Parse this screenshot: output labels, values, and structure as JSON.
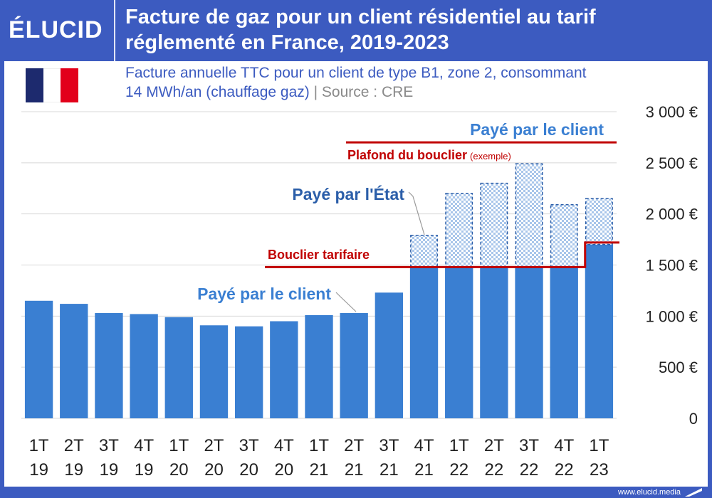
{
  "header": {
    "logo_text": "ÉLUCID",
    "title_line1": "Facture de gaz pour un client résidentiel au tarif",
    "title_line2": "réglementé en France, 2019-2023"
  },
  "subtitle": {
    "line1": "Facture annuelle TTC pour un client de type B1, zone 2, consommant",
    "line2": "14 MWh/an (chauffage gaz)",
    "separator": "|",
    "source": "Source : CRE"
  },
  "footer": {
    "url": "www.elucid.media"
  },
  "colors": {
    "brand": "#3c5bc0",
    "bar": "#3a7fd2",
    "shield_line": "#c00000",
    "flag_blue": "#1d2a6e",
    "flag_red": "#e2001a",
    "grid": "#d8d8d8",
    "annotation_blue": "#3a7fd2"
  },
  "chart_data": {
    "type": "bar",
    "title": "Facture de gaz pour un client résidentiel au tarif réglementé en France, 2019-2023",
    "categories": [
      [
        "1T",
        "19"
      ],
      [
        "2T",
        "19"
      ],
      [
        "3T",
        "19"
      ],
      [
        "4T",
        "19"
      ],
      [
        "1T",
        "20"
      ],
      [
        "2T",
        "20"
      ],
      [
        "3T",
        "20"
      ],
      [
        "4T",
        "20"
      ],
      [
        "1T",
        "21"
      ],
      [
        "2T",
        "21"
      ],
      [
        "3T",
        "21"
      ],
      [
        "4T",
        "21"
      ],
      [
        "1T",
        "22"
      ],
      [
        "2T",
        "22"
      ],
      [
        "3T",
        "22"
      ],
      [
        "4T",
        "22"
      ],
      [
        "1T",
        "23"
      ]
    ],
    "series": [
      {
        "name": "Payé par le client",
        "values": [
          1150,
          1120,
          1030,
          1020,
          990,
          910,
          900,
          950,
          1010,
          1030,
          1230,
          1480,
          1480,
          1480,
          1480,
          1480,
          1700
        ]
      },
      {
        "name": "Payé par l'État",
        "values": [
          0,
          0,
          0,
          0,
          0,
          0,
          0,
          0,
          0,
          0,
          0,
          310,
          720,
          820,
          1010,
          610,
          450
        ]
      }
    ],
    "ylim": [
      0,
      3000
    ],
    "yticks": [
      0,
      500,
      1000,
      1500,
      2000,
      2500,
      3000
    ],
    "ytick_labels": [
      "0",
      "500 €",
      "1 000 €",
      "1 500 €",
      "2 000 €",
      "2 500 €",
      "3 000 €"
    ],
    "y_axis_side": "right",
    "grid": true,
    "annotations": {
      "client_legend": "Payé par le client",
      "shield_cap": "Plafond du bouclier",
      "shield_cap_note": "(exemple)",
      "state": "Payé par l'État",
      "shield": "Bouclier tarifaire",
      "client": "Payé par le client"
    },
    "shield_cap_value": 2700,
    "shield_levels": [
      {
        "from_index": 10,
        "to_index": 15,
        "value": 1480
      },
      {
        "from_index": 16,
        "to_index": 16,
        "value": 1720
      }
    ]
  }
}
